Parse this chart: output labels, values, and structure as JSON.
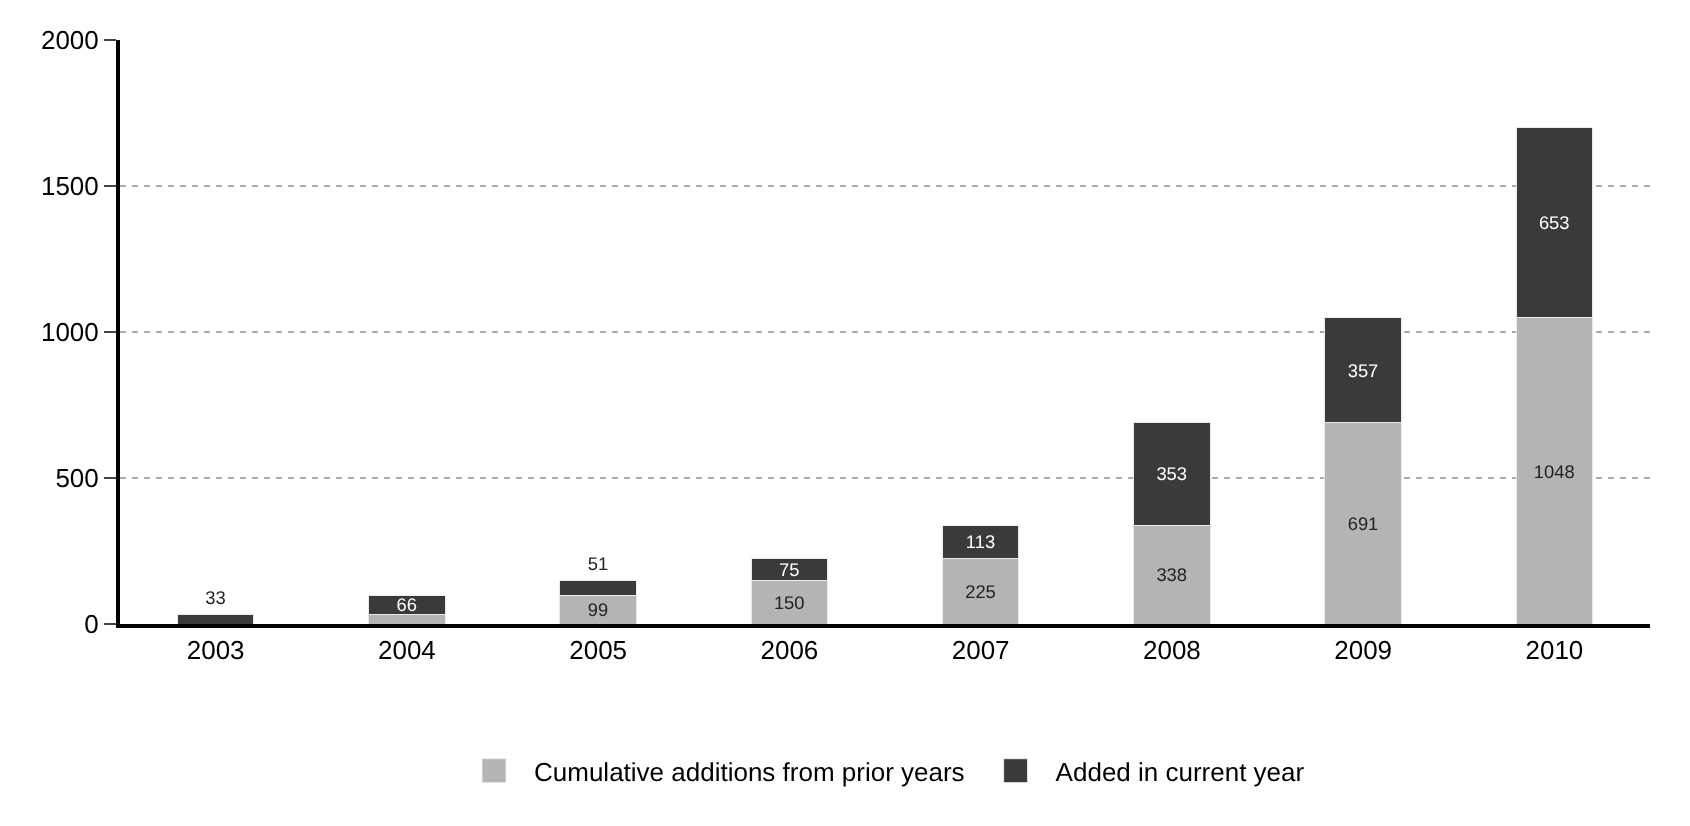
{
  "chart_data": {
    "type": "bar",
    "stacked": true,
    "categories": [
      "2003",
      "2004",
      "2005",
      "2006",
      "2007",
      "2008",
      "2009",
      "2010"
    ],
    "series": [
      {
        "name": "Cumulative additions from prior years",
        "color": "#b4b4b4",
        "values": [
          0,
          33,
          99,
          150,
          225,
          338,
          691,
          1048
        ],
        "value_labels": [
          null,
          null,
          "99",
          "150",
          "225",
          "338",
          "691",
          "1048"
        ]
      },
      {
        "name": "Added in current year",
        "color": "#3a3a3a",
        "values": [
          33,
          66,
          51,
          75,
          113,
          353,
          357,
          653
        ],
        "value_labels": [
          "33",
          "66",
          "51",
          "75",
          "113",
          "353",
          "357",
          "653"
        ]
      }
    ],
    "ylim": [
      0,
      2000
    ],
    "yticks": [
      0,
      500,
      1000,
      1500,
      2000
    ],
    "grid": "y",
    "legend": "bottom"
  }
}
